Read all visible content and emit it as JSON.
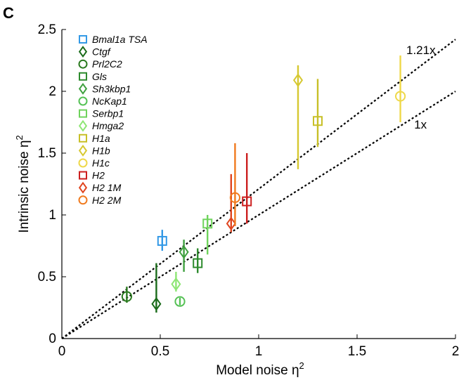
{
  "chart_data": {
    "type": "scatter",
    "panel_label": "C",
    "xlabel": "Model noise η",
    "xlabel_sup": "2",
    "ylabel": "Intrinsic noise η",
    "ylabel_sup": "2",
    "xlim": [
      0,
      2
    ],
    "ylim": [
      0,
      2.5
    ],
    "x_ticks": [
      0,
      0.5,
      1,
      1.5,
      2
    ],
    "x_tick_labels": [
      "0",
      "0.5",
      "1",
      "1.5",
      "2"
    ],
    "y_ticks": [
      0,
      0.5,
      1,
      1.5,
      2,
      2.5
    ],
    "y_tick_labels": [
      "0",
      "0.5",
      "1",
      "1.5",
      "2",
      "2.5"
    ],
    "grid": false,
    "legend_position": "top-left",
    "reference_lines": [
      {
        "label": "1.21x",
        "slope": 1.21,
        "style": "dotted"
      },
      {
        "label": "1x",
        "slope": 1.0,
        "style": "dotted"
      }
    ],
    "series": [
      {
        "name": "Bmal1a TSA",
        "marker": "square",
        "color": "#3399e6",
        "x": 0.51,
        "y": 0.79,
        "err": [
          0.71,
          0.88
        ]
      },
      {
        "name": "Ctgf",
        "marker": "diamond",
        "color": "#1a6b1a",
        "x": 0.48,
        "y": 0.28,
        "err": [
          0.21,
          0.61
        ]
      },
      {
        "name": "Prl2C2",
        "marker": "circle",
        "color": "#2a7a1f",
        "x": 0.33,
        "y": 0.34,
        "err": [
          0.29,
          0.42
        ]
      },
      {
        "name": "Gls",
        "marker": "square",
        "color": "#2e8b2e",
        "x": 0.69,
        "y": 0.61,
        "err": [
          0.53,
          0.73
        ]
      },
      {
        "name": "Sh3kbp1",
        "marker": "diamond",
        "color": "#3fa03f",
        "x": 0.62,
        "y": 0.7,
        "err": [
          0.54,
          0.8
        ]
      },
      {
        "name": "NcKap1",
        "marker": "circle",
        "color": "#55c155",
        "x": 0.6,
        "y": 0.3,
        "err": [
          0.27,
          0.33
        ]
      },
      {
        "name": "Serbp1",
        "marker": "square",
        "color": "#6fd35c",
        "x": 0.74,
        "y": 0.93,
        "err": [
          0.68,
          1.0
        ]
      },
      {
        "name": "Hmga2",
        "marker": "diamond",
        "color": "#8ee675",
        "x": 0.58,
        "y": 0.44,
        "err": [
          0.38,
          0.54
        ]
      },
      {
        "name": "H1a",
        "marker": "square",
        "color": "#c8c028",
        "x": 1.3,
        "y": 1.76,
        "err": [
          1.55,
          2.1
        ]
      },
      {
        "name": "H1b",
        "marker": "diamond",
        "color": "#d6c830",
        "x": 1.2,
        "y": 2.09,
        "err": [
          1.37,
          2.21
        ]
      },
      {
        "name": "H1c",
        "marker": "circle",
        "color": "#eed84a",
        "x": 1.72,
        "y": 1.96,
        "err": [
          1.75,
          2.29
        ]
      },
      {
        "name": "H2",
        "marker": "square",
        "color": "#cc1f1f",
        "x": 0.94,
        "y": 1.11,
        "err": [
          0.93,
          1.5
        ]
      },
      {
        "name": "H2 1M",
        "marker": "diamond",
        "color": "#e0441e",
        "x": 0.86,
        "y": 0.93,
        "err": [
          0.86,
          1.33
        ]
      },
      {
        "name": "H2 2M",
        "marker": "circle",
        "color": "#f07a1e",
        "x": 0.88,
        "y": 1.14,
        "err": [
          0.91,
          1.58
        ]
      }
    ]
  }
}
